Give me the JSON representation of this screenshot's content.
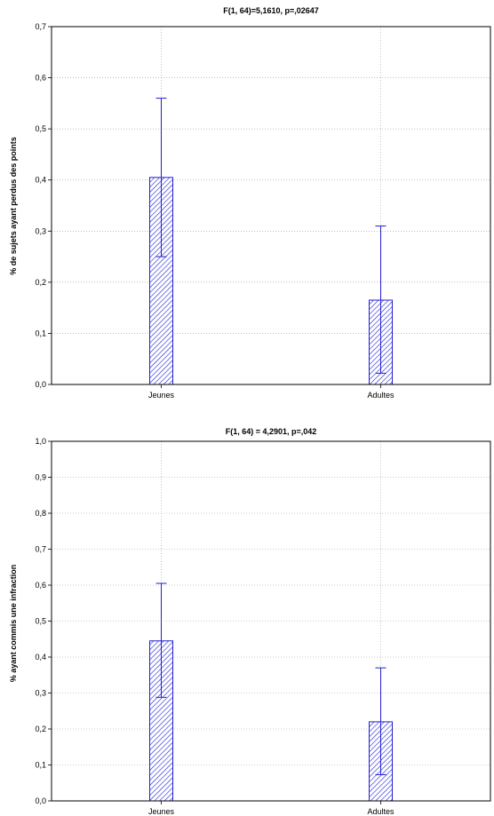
{
  "chart_data": [
    {
      "type": "bar",
      "title": "F(1, 64)=5,1610,  p=,02647",
      "xlabel": "",
      "ylabel": "% de sujets ayant perdus des points",
      "categories": [
        "Jeunes",
        "Adultes"
      ],
      "values": [
        0.405,
        0.165
      ],
      "error_low": [
        0.25,
        0.022
      ],
      "error_high": [
        0.56,
        0.31
      ],
      "ylim": [
        0.0,
        0.7
      ],
      "yticks": [
        "0,0",
        "0,1",
        "0,2",
        "0,3",
        "0,4",
        "0,5",
        "0,6",
        "0,7"
      ],
      "grid": true,
      "bar_color": "#1f1fd6"
    },
    {
      "type": "bar",
      "title": "F(1, 64) = 4,2901,  p=,042",
      "xlabel": "",
      "ylabel": "% ayant commis une infraction",
      "categories": [
        "Jeunes",
        "Adultes"
      ],
      "values": [
        0.445,
        0.22
      ],
      "error_low": [
        0.288,
        0.073
      ],
      "error_high": [
        0.605,
        0.37
      ],
      "ylim": [
        0.0,
        1.0
      ],
      "yticks": [
        "0,0",
        "0,1",
        "0,2",
        "0,3",
        "0,4",
        "0,5",
        "0,6",
        "0,7",
        "0,8",
        "0,9",
        "1,0"
      ],
      "grid": true,
      "bar_color": "#1f1fd6"
    }
  ]
}
